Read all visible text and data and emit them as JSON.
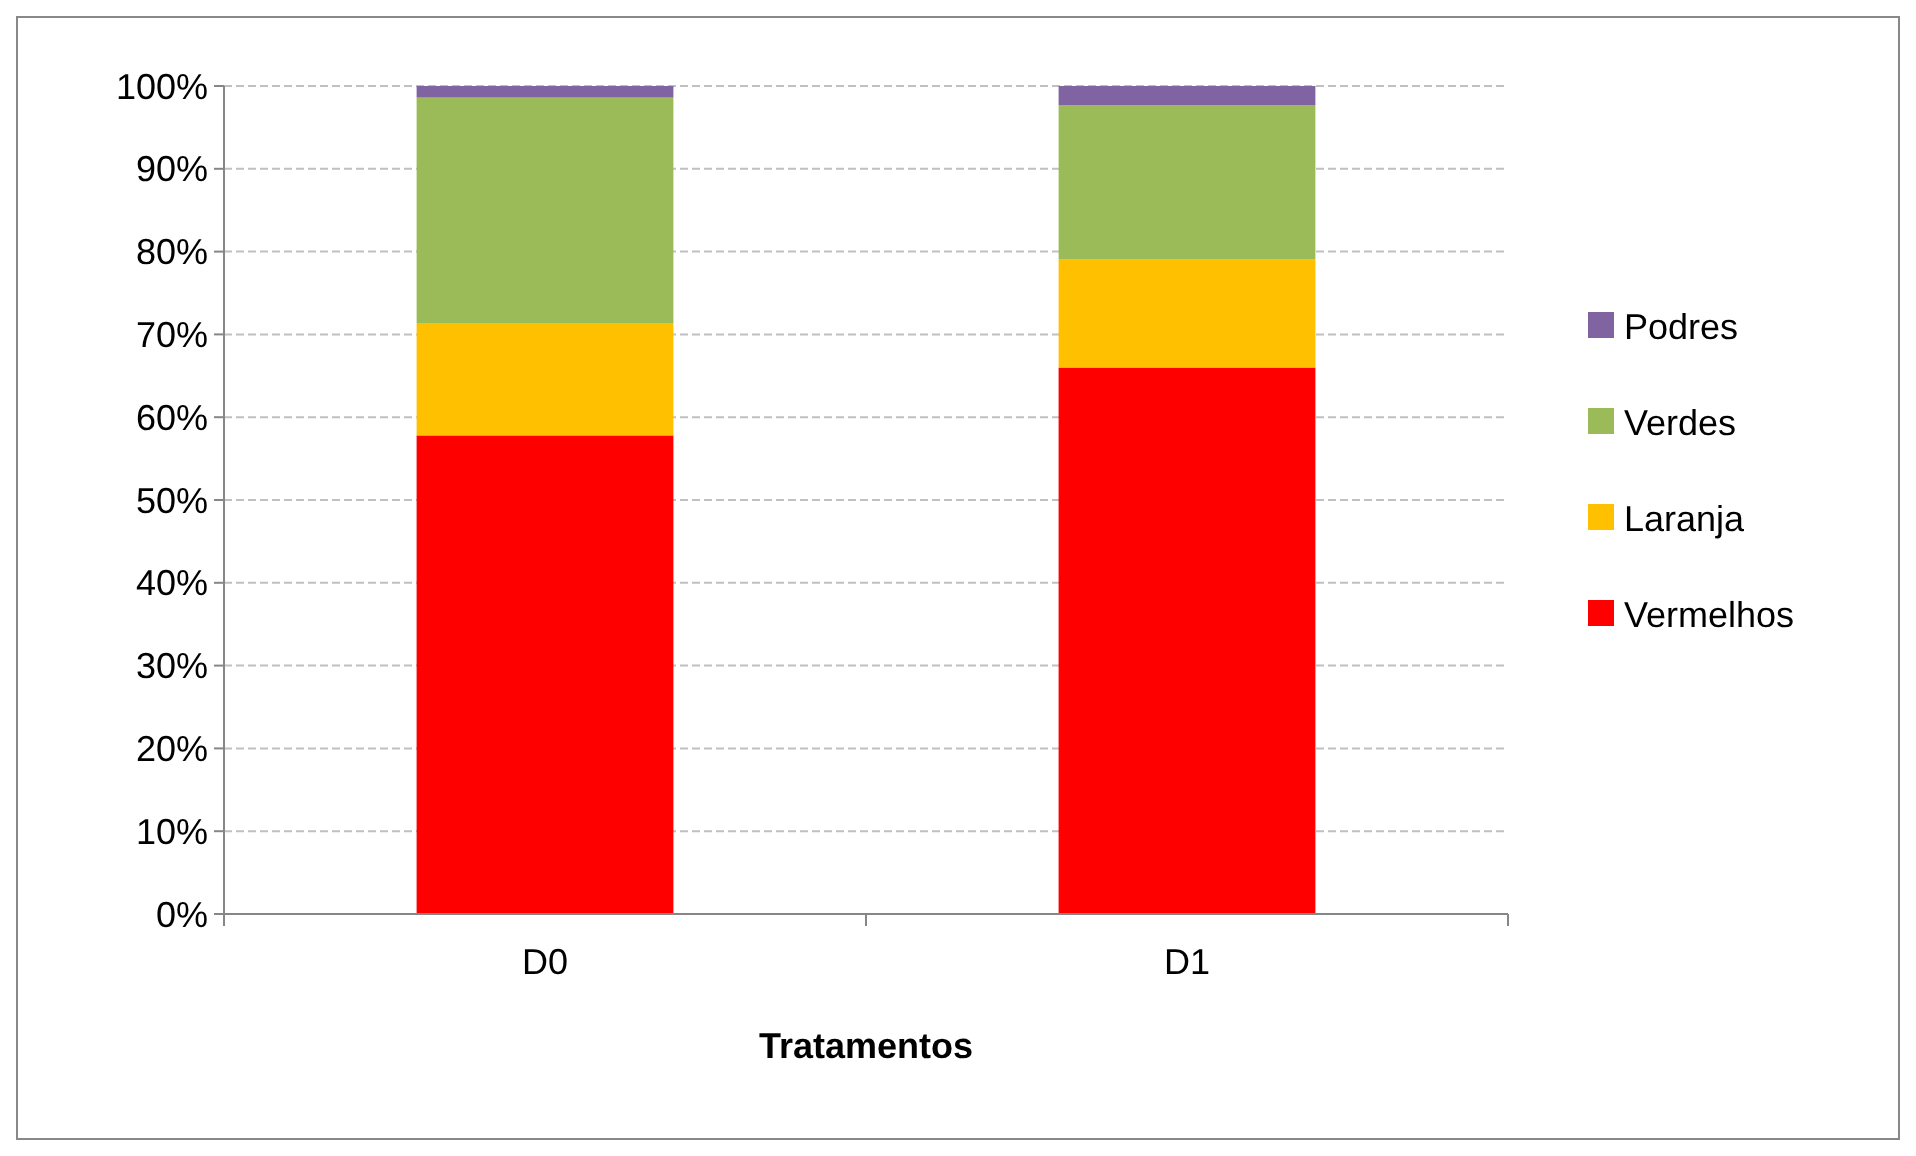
{
  "chart_data": {
    "type": "bar",
    "stacked": true,
    "xlabel": "Tratamentos",
    "categories": [
      "D0",
      "D1"
    ],
    "series": [
      {
        "name": "Vermelhos",
        "color": "#ff0000",
        "values": [
          57.8,
          66.0
        ]
      },
      {
        "name": "Laranja",
        "color": "#ffc000",
        "values": [
          13.5,
          13.1
        ]
      },
      {
        "name": "Verdes",
        "color": "#9bbb59",
        "values": [
          27.3,
          18.6
        ]
      },
      {
        "name": "Podres",
        "color": "#8064a2",
        "values": [
          1.4,
          2.3
        ]
      }
    ],
    "ylim": [
      0,
      100
    ],
    "yticks": [
      {
        "value": 0,
        "label": "0%"
      },
      {
        "value": 10,
        "label": "10%"
      },
      {
        "value": 20,
        "label": "20%"
      },
      {
        "value": 30,
        "label": "30%"
      },
      {
        "value": 40,
        "label": "40%"
      },
      {
        "value": 50,
        "label": "50%"
      },
      {
        "value": 60,
        "label": "60%"
      },
      {
        "value": 70,
        "label": "70%"
      },
      {
        "value": 80,
        "label": "80%"
      },
      {
        "value": 90,
        "label": "90%"
      },
      {
        "value": 100,
        "label": "100%"
      }
    ],
    "grid": "y",
    "legend": "right"
  }
}
